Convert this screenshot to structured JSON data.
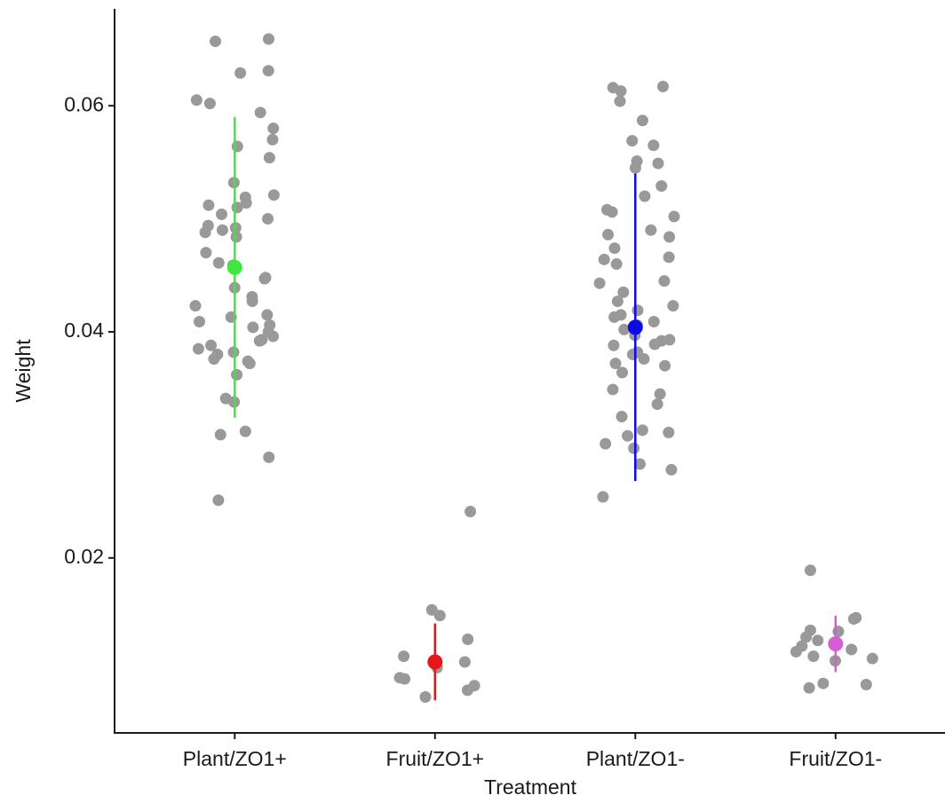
{
  "chart_data": {
    "type": "strip",
    "x_label": "Treatment",
    "y_label": "Weight",
    "categories": [
      "Plant/ZO1+",
      "Fruit/ZO1+",
      "Plant/ZO1-",
      "Fruit/ZO1-"
    ],
    "point_color": "#999999",
    "points": [
      [
        0.0659,
        0.0657,
        0.0631,
        0.0629,
        0.0602,
        0.0605,
        0.0594,
        0.058,
        0.057,
        0.0564,
        0.0554,
        0.0532,
        0.0521,
        0.0519,
        0.0514,
        0.0512,
        0.051,
        0.0504,
        0.05,
        0.0494,
        0.0492,
        0.049,
        0.0488,
        0.0484,
        0.047,
        0.0461,
        0.0459,
        0.0448,
        0.0447,
        0.0439,
        0.0431,
        0.0427,
        0.0423,
        0.0415,
        0.0413,
        0.0409,
        0.0406,
        0.0404,
        0.04,
        0.0396,
        0.0393,
        0.0392,
        0.0388,
        0.0385,
        0.0382,
        0.038,
        0.0376,
        0.0374,
        0.0372,
        0.0362,
        0.0341,
        0.0338,
        0.0312,
        0.0309,
        0.0289,
        0.0251
      ],
      [
        0.0241,
        0.0154,
        0.0149,
        0.0128,
        0.0113,
        0.0108,
        0.0103,
        0.0094,
        0.0093,
        0.0087,
        0.0083,
        0.0077
      ],
      [
        0.0617,
        0.0616,
        0.0613,
        0.0604,
        0.0587,
        0.0569,
        0.0565,
        0.0551,
        0.0549,
        0.0545,
        0.0529,
        0.052,
        0.0508,
        0.0506,
        0.0502,
        0.049,
        0.0486,
        0.0484,
        0.0474,
        0.0466,
        0.0464,
        0.046,
        0.0445,
        0.0443,
        0.0435,
        0.0427,
        0.0423,
        0.0419,
        0.0415,
        0.0413,
        0.0409,
        0.0406,
        0.0402,
        0.0397,
        0.0393,
        0.0392,
        0.0389,
        0.0388,
        0.0382,
        0.038,
        0.0376,
        0.0372,
        0.037,
        0.0364,
        0.0349,
        0.0345,
        0.0336,
        0.0325,
        0.0313,
        0.0311,
        0.0308,
        0.0301,
        0.0297,
        0.0283,
        0.0278,
        0.0254
      ],
      [
        0.0189,
        0.0147,
        0.0146,
        0.0136,
        0.0135,
        0.013,
        0.0127,
        0.0122,
        0.0119,
        0.0117,
        0.0113,
        0.0111,
        0.0109,
        0.0089,
        0.0088,
        0.0085
      ]
    ],
    "means": [
      0.0457,
      0.0108,
      0.0404,
      0.0124
    ],
    "errors": [
      0.0133,
      0.0034,
      0.0136,
      0.0025
    ],
    "colors": [
      "#3ee83e",
      "#e8161b",
      "#0b0bea",
      "#d35fd3"
    ],
    "ylim": [
      0.00452,
      0.06857
    ],
    "yticks": [
      {
        "value": 0.02,
        "label": "0.02"
      },
      {
        "value": 0.04,
        "label": "0.04"
      },
      {
        "value": 0.06,
        "label": "0.06"
      }
    ]
  }
}
